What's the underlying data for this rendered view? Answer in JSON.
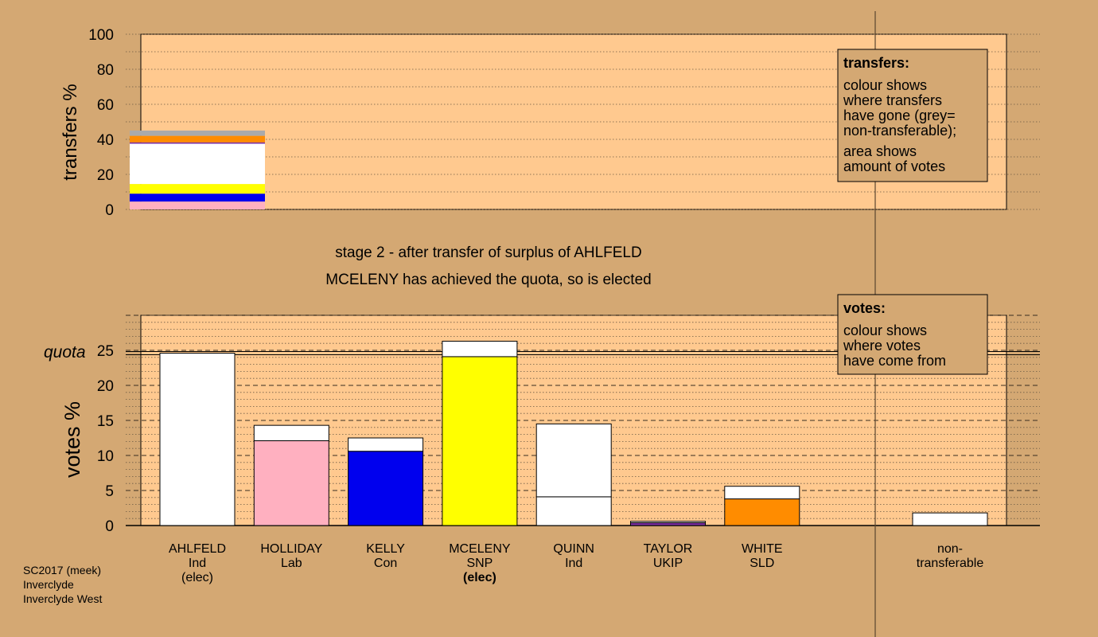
{
  "colors": {
    "background": "#d4a873",
    "panel": "#ffc98f",
    "nontransferable": "#aaaaaa"
  },
  "header": {
    "stage_line": "stage 2 - after transfer of surplus of AHLFELD",
    "status_line": "MCELENY has achieved the quota, so is elected"
  },
  "footer": {
    "line1": "SC2017 (meek)",
    "line2": "Inverclyde",
    "line3": "Inverclyde West"
  },
  "legend_transfers": {
    "title": "transfers:",
    "text1": [
      "colour shows",
      "where transfers",
      "have gone (grey=",
      "non-transferable);"
    ],
    "text2": [
      "area shows",
      "amount of votes"
    ]
  },
  "legend_votes": {
    "title": "votes:",
    "text": [
      "colour shows",
      "where votes",
      "have come from"
    ]
  },
  "chart_data": [
    {
      "type": "bar",
      "ylabel": "transfers %",
      "ylim": [
        0,
        100
      ],
      "yticks": [
        0,
        20,
        40,
        60,
        80,
        100
      ],
      "grid": true,
      "stacked_segments": [
        {
          "from": 0,
          "to": 4.5,
          "color": "#ffb0c0"
        },
        {
          "from": 4.5,
          "to": 9,
          "color": "#0000ee"
        },
        {
          "from": 9,
          "to": 14.5,
          "color": "#ffff00"
        },
        {
          "from": 14.5,
          "to": 37.5,
          "color": "#ffffff"
        },
        {
          "from": 37.5,
          "to": 38.3,
          "color": "#7b2fa0"
        },
        {
          "from": 38.3,
          "to": 42,
          "color": "#ff8c00"
        },
        {
          "from": 42,
          "to": 45,
          "color": "#aaaaaa"
        }
      ]
    },
    {
      "type": "bar",
      "ylabel": "votes %",
      "ylim": [
        0,
        30
      ],
      "yticks": [
        0,
        5,
        10,
        15,
        20,
        25
      ],
      "quota": 24.6,
      "quota_label": "quota",
      "grid": true,
      "categories": [
        {
          "name": "AHLFELD",
          "party": "Ind",
          "note": "(elec)",
          "note_bold": false,
          "base": 24.6,
          "added": 0,
          "color": "#ffffff"
        },
        {
          "name": "HOLLIDAY",
          "party": "Lab",
          "note": "",
          "note_bold": false,
          "base": 12.1,
          "added": 2.2,
          "color": "#ffb0c0"
        },
        {
          "name": "KELLY",
          "party": "Con",
          "note": "",
          "note_bold": false,
          "base": 10.6,
          "added": 1.9,
          "color": "#0000ee"
        },
        {
          "name": "MCELENY",
          "party": "SNP",
          "note": "(elec)",
          "note_bold": true,
          "base": 24.1,
          "added": 2.2,
          "color": "#ffff00"
        },
        {
          "name": "QUINN",
          "party": "Ind",
          "note": "",
          "note_bold": false,
          "base": 4.1,
          "added": 10.4,
          "color": "#ffffff"
        },
        {
          "name": "TAYLOR",
          "party": "UKIP",
          "note": "",
          "note_bold": false,
          "base": 0.4,
          "added": 0.2,
          "color": "#7b2fa0"
        },
        {
          "name": "WHITE",
          "party": "SLD",
          "note": "",
          "note_bold": false,
          "base": 3.8,
          "added": 1.8,
          "color": "#ff8c00"
        }
      ],
      "nontransferable": {
        "label1": "non-",
        "label2": "transferable",
        "value": 1.8
      }
    }
  ]
}
